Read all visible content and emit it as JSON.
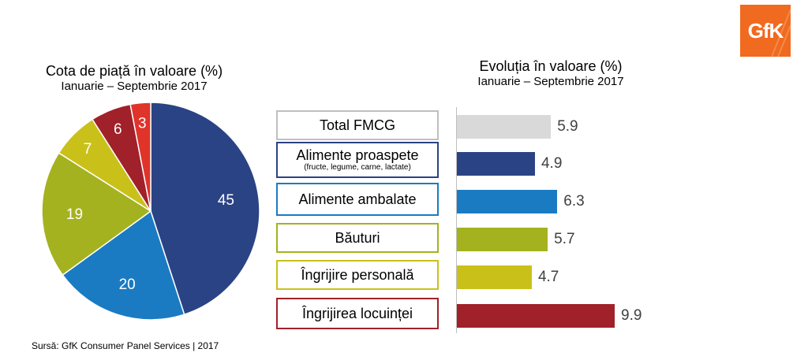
{
  "brand": {
    "logo_text": "GfK",
    "color": "#f06a1f"
  },
  "pie_chart_title": {
    "line1": "Cota de piață în valoare (%)",
    "line2": "Ianuarie – Septembrie 2017"
  },
  "bar_chart_title": {
    "line1": "Evoluția în valoare (%)",
    "line2": "Ianuarie – Septembrie 2017"
  },
  "source": "Sursă: GfK Consumer Panel Services | 2017",
  "chart_data": [
    {
      "type": "pie",
      "title": "Cota de piață în valoare (%)",
      "subtitle": "Ianuarie – Septembrie 2017",
      "slices": [
        {
          "label": "Alimente proaspete",
          "value": 45,
          "color": "#2a4384"
        },
        {
          "label": "Alimente ambalate",
          "value": 20,
          "color": "#1b7bc2"
        },
        {
          "label": "Băuturi",
          "value": 19,
          "color": "#a4b21f"
        },
        {
          "label": "Îngrijire personală",
          "value": 7,
          "color": "#c9c11a"
        },
        {
          "label": "Îngrijirea locuinței",
          "value": 6,
          "color": "#a02129"
        },
        {
          "label": "",
          "value": 3,
          "color": "#e0332a"
        }
      ]
    },
    {
      "type": "bar",
      "title": "Evoluția în valoare (%)",
      "subtitle": "Ianuarie – Septembrie 2017",
      "categories": [
        {
          "label": "Total FMCG",
          "sublabel": "",
          "border": "#bfbfbf"
        },
        {
          "label": "Alimente proaspete",
          "sublabel": "(fructe, legume, carne, lactate)",
          "border": "#2a4384"
        },
        {
          "label": "Alimente ambalate",
          "sublabel": "",
          "border": "#1b7bc2"
        },
        {
          "label": "Băuturi",
          "sublabel": "",
          "border": "#a4b21f"
        },
        {
          "label": "Îngrijire personală",
          "sublabel": "",
          "border": "#c9c11a"
        },
        {
          "label": "Îngrijirea locuinței",
          "sublabel": "",
          "border": "#a02129"
        }
      ],
      "values": [
        5.9,
        4.9,
        6.3,
        5.7,
        4.7,
        9.9
      ],
      "value_labels": [
        "5.9",
        "4.9",
        "6.3",
        "5.7",
        "4.7",
        "9.9"
      ],
      "colors": [
        "#d9d9d9",
        "#2a4384",
        "#1b7bc2",
        "#a4b21f",
        "#c9c11a",
        "#a02129"
      ]
    }
  ]
}
